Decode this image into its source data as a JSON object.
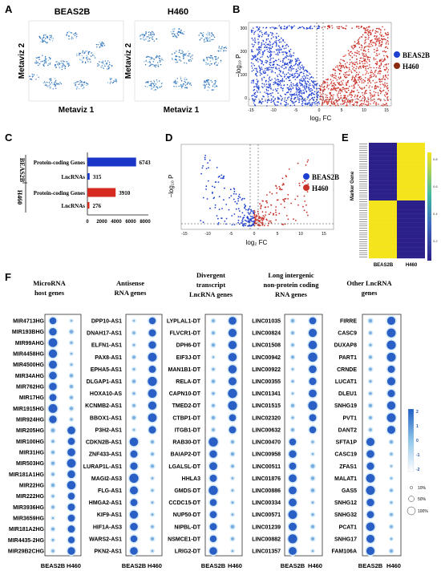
{
  "panels": {
    "A": {
      "letter": "A",
      "titles": [
        "BEAS2B",
        "H460"
      ],
      "xlabel": "Metaviz 1",
      "ylabel": "Metaviz 2"
    },
    "B": {
      "letter": "B",
      "xlabel": "log₂ FC",
      "ylabel": "−log₁₀ P",
      "xticks": [
        "-15",
        "-10",
        "-5",
        "0",
        "5",
        "10",
        "15"
      ],
      "yticks": [
        "0",
        "100",
        "200",
        "300"
      ],
      "legend": [
        "BEAS2B",
        "H460"
      ],
      "colors": {
        "BEAS2B": "#1f3fd0",
        "H460": "#c8322a"
      }
    },
    "C": {
      "letter": "C",
      "group_labels": [
        "BEAS2B",
        "H460"
      ],
      "xticks": [
        "0",
        "2000",
        "4000",
        "6000",
        "8000"
      ],
      "colors": {
        "BEAS2B": "#1a36c8",
        "H460": "#d62a20"
      }
    },
    "D": {
      "letter": "D",
      "xlabel": "log₂ FC",
      "ylabel": "−log₁₀ P",
      "xticks": [
        "-15",
        "-10",
        "-5",
        "0",
        "5",
        "10",
        "15"
      ],
      "legend": [
        "BEAS2B",
        "H460"
      ]
    },
    "E": {
      "letter": "E",
      "ylabel": "Marker Gene",
      "xlabels": [
        "BEAS2B",
        "H460"
      ],
      "colorbar_ticks": [
        "0.2",
        "0.4",
        "0.6",
        "0.8"
      ]
    },
    "F": {
      "letter": "F",
      "xlabels": [
        "BEAS2B",
        "H460"
      ],
      "colorbar_ticks": [
        "2",
        "1",
        "0",
        "-1",
        "-2"
      ],
      "size_legend": [
        "10%",
        "50%",
        "100%"
      ],
      "groups": [
        {
          "title_lines": [
            "MicroRNA",
            "host genes"
          ],
          "genes": [
            "MIR4713HG",
            "MIR193BHG",
            "MIR99AHG",
            "MIR4458HG",
            "MIR4500HG",
            "MIR34AHG",
            "MIR762HG",
            "MIR17HG",
            "MIR1915HG",
            "MIR924HG",
            "MIR205HG",
            "MIR100HG",
            "MIR31HG",
            "MIR503HG",
            "MIR181A1HG",
            "MIR22HG",
            "MIR222HG",
            "MIR3936HG",
            "MIR3659HG",
            "MIR181A2HG",
            "MIR4435-2HG",
            "MIR29B2CHG"
          ]
        },
        {
          "title_lines": [
            "Antisense",
            "RNA genes"
          ],
          "genes": [
            "DPP10-AS1",
            "DNAH17-AS1",
            "ELFN1-AS1",
            "PAX8-AS1",
            "EPHA5-AS1",
            "DLGAP1-AS1",
            "HOXA10-AS",
            "KCNMB2-AS1",
            "BBOX1-AS1",
            "P3H2-AS1",
            "CDKN2B-AS1",
            "ZNF433-AS1",
            "LURAP1L-AS1",
            "MAGI2-AS3",
            "FLG-AS1",
            "HMGA2-AS1",
            "KIF9-AS1",
            "HIF1A-AS3",
            "WARS2-AS1",
            "PKN2-AS1"
          ]
        },
        {
          "title_lines": [
            "Divergent",
            "transcript",
            "LncRNA genes"
          ],
          "genes": [
            "LYPLAL1-DT",
            "FLVCR1-DT",
            "DPH6-DT",
            "EIF3J-DT",
            "MAN1B1-DT",
            "RELA-DT",
            "CAPN10-DT",
            "TMED2-DT",
            "CTBP1-DT",
            "ITGB1-DT",
            "RAB30-DT",
            "BAIAP2-DT",
            "LGALSL-DT",
            "HHLA3",
            "GMDS-DT",
            "CCDC15-DT",
            "NUP50-DT",
            "NIPBL-DT",
            "NSMCE1-DT",
            "LRIG2-DT"
          ]
        },
        {
          "title_lines": [
            "Long intergenic",
            "non-protein coding",
            "RNA genes"
          ],
          "genes": [
            "LINC01035",
            "LINC00824",
            "LINC01508",
            "LINC00942",
            "LINC00922",
            "LINC00355",
            "LINC01341",
            "LINC01515",
            "LINC02320",
            "LINC00632",
            "LINC00470",
            "LINC00958",
            "LINC00511",
            "LINC01876",
            "LINC00886",
            "LINC00334",
            "LINC00571",
            "LINC01239",
            "LINC00882",
            "LINC01357"
          ]
        },
        {
          "title_lines": [
            "Other LncRNA",
            "genes"
          ],
          "genes": [
            "FIRRE",
            "CASC9",
            "DUXAP8",
            "PART1",
            "CRNDE",
            "LUCAT1",
            "DLEU1",
            "SNHG19",
            "PVT1",
            "DANT2",
            "SFTA1P",
            "CASC19",
            "ZFAS1",
            "MALAT1",
            "GAS5",
            "SNHG12",
            "SNHG32",
            "PCAT1",
            "SNHG17",
            "FAM106A"
          ]
        }
      ]
    }
  },
  "chart_data": [
    {
      "type": "bar",
      "panel": "C",
      "categories": [
        "Protein-coding Genes",
        "LncRNAs",
        "Protein-coding Genes",
        "LncRNAs"
      ],
      "groups": [
        "BEAS2B",
        "BEAS2B",
        "H460",
        "H460"
      ],
      "values": [
        6743,
        315,
        3910,
        276
      ],
      "xlim": [
        0,
        8000
      ]
    }
  ]
}
